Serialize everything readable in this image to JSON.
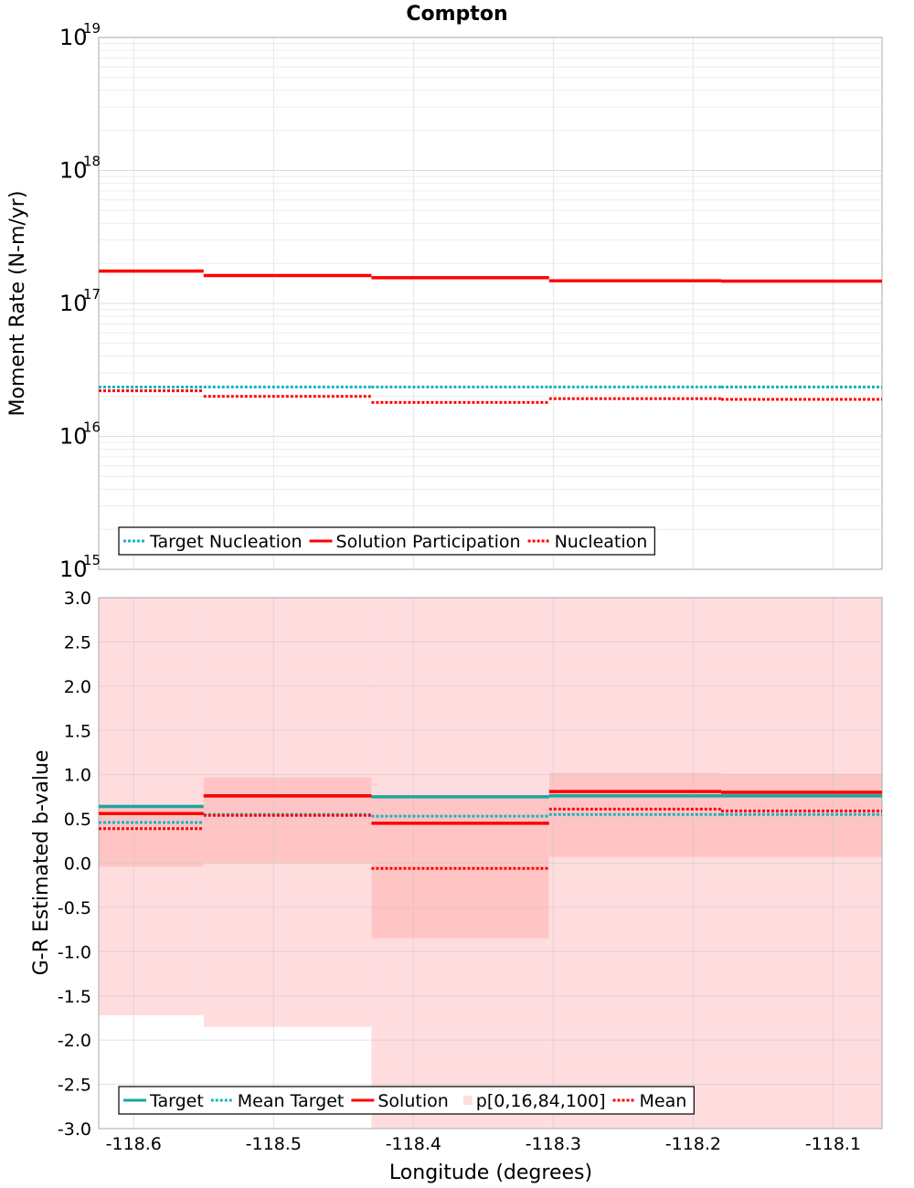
{
  "title": "Compton",
  "colors": {
    "target": "#1aa7a1",
    "target_dotted": "#17b3c1",
    "solution": "#ff0000",
    "band_outer": "#ffdddf",
    "band_inner": "#ffc5c5",
    "grid": "#e6e6e6",
    "frame": "#aaaaaa"
  },
  "x_axis": {
    "label": "Longitude (degrees)",
    "range": [
      -118.625,
      -118.065
    ],
    "ticks": [
      -118.6,
      -118.5,
      -118.4,
      -118.3,
      -118.2,
      -118.1
    ],
    "tick_labels": [
      "-118.6",
      "-118.5",
      "-118.4",
      "-118.3",
      "-118.2",
      "-118.1"
    ]
  },
  "chart_data": [
    {
      "type": "line",
      "title": "Compton",
      "ylabel": "Moment Rate (N-m/yr)",
      "yscale": "log",
      "ylim": [
        1000000000000000.0,
        1e+19
      ],
      "ytick_labels": [
        {
          "base": "10",
          "exp": "15"
        },
        {
          "base": "10",
          "exp": "16"
        },
        {
          "base": "10",
          "exp": "17"
        },
        {
          "base": "10",
          "exp": "18"
        },
        {
          "base": "10",
          "exp": "19"
        }
      ],
      "grid": true,
      "legend_placement": "bottom-left",
      "bin_edges": [
        -118.625,
        -118.55,
        -118.43,
        -118.303,
        -118.18,
        -118.065
      ],
      "series": [
        {
          "name": "Target Nucleation",
          "style": "dotted",
          "color": "#17b3c1",
          "values": [
            2.35e+16,
            2.35e+16,
            2.35e+16,
            2.35e+16,
            2.35e+16
          ]
        },
        {
          "name": "Solution Participation",
          "style": "solid",
          "color": "#ff0000",
          "values": [
            1.75e+17,
            1.62e+17,
            1.56e+17,
            1.48e+17,
            1.47e+17
          ]
        },
        {
          "name": "Nucleation",
          "style": "dotted",
          "color": "#ff0000",
          "values": [
            2.2e+16,
            2e+16,
            1.8e+16,
            1.92e+16,
            1.9e+16
          ]
        }
      ]
    },
    {
      "type": "line",
      "ylabel": "G-R Estimated b-value",
      "ylim": [
        -3.0,
        3.0
      ],
      "yticks": [
        -3.0,
        -2.5,
        -2.0,
        -1.5,
        -1.0,
        -0.5,
        0.0,
        0.5,
        1.0,
        1.5,
        2.0,
        2.5,
        3.0
      ],
      "ytick_labels": [
        "-3.0",
        "-2.5",
        "-2.0",
        "-1.5",
        "-1.0",
        "-0.5",
        "0.0",
        "0.5",
        "1.0",
        "1.5",
        "2.0",
        "2.5",
        "3.0"
      ],
      "grid": true,
      "legend_placement": "bottom-left",
      "bin_edges": [
        -118.625,
        -118.55,
        -118.43,
        -118.303,
        -118.18,
        -118.065
      ],
      "series": [
        {
          "name": "Target",
          "style": "solid",
          "color": "#1aa7a1",
          "values": [
            0.64,
            0.76,
            0.75,
            0.76,
            0.76
          ]
        },
        {
          "name": "Mean Target",
          "style": "dotted",
          "color": "#17b3c1",
          "values": [
            0.46,
            0.55,
            0.53,
            0.55,
            0.55
          ]
        },
        {
          "name": "Solution",
          "style": "solid",
          "color": "#ff0000",
          "values": [
            0.56,
            0.76,
            0.45,
            0.81,
            0.8
          ]
        },
        {
          "name": "p[0,16,84,100]",
          "style": "band",
          "color": "#ffc5c5",
          "p0": [
            -1.72,
            -1.85,
            -3.0,
            -3.0,
            -3.0
          ],
          "p16": [
            -0.04,
            0.0,
            -0.85,
            0.07,
            0.07
          ],
          "p84": [
            0.66,
            0.97,
            0.75,
            1.02,
            1.01
          ],
          "p100": [
            3.0,
            3.0,
            3.0,
            3.0,
            3.0
          ]
        },
        {
          "name": "Mean",
          "style": "dotted",
          "color": "#ff0000",
          "values": [
            0.39,
            0.54,
            -0.06,
            0.61,
            0.59
          ]
        }
      ]
    }
  ]
}
